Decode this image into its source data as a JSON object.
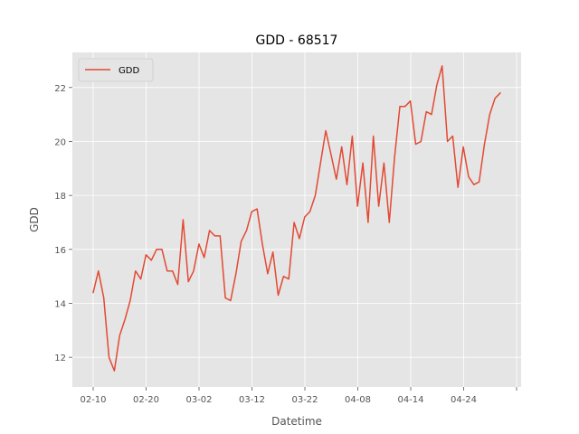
{
  "chart_data": {
    "type": "line",
    "title": "GDD - 68517",
    "xlabel": "Datetime",
    "ylabel": "GDD",
    "x_tick_labels": [
      "02-10",
      "02-20",
      "03-02",
      "03-12",
      "03-22",
      "04-08",
      "04-14",
      "04-24"
    ],
    "y_ticks": [
      12,
      14,
      16,
      18,
      20,
      22
    ],
    "ylim": [
      10.9,
      23.3
    ],
    "grid": true,
    "legend_position": "top-left",
    "colors": {
      "line": "#e24a33",
      "plot_background": "#e5e5e5",
      "grid": "#ffffff"
    },
    "series": [
      {
        "name": "GDD",
        "values": [
          14.4,
          15.2,
          14.2,
          12.0,
          11.5,
          12.8,
          13.4,
          14.1,
          15.2,
          14.9,
          15.8,
          15.6,
          16.0,
          16.0,
          15.2,
          15.2,
          14.7,
          17.1,
          14.8,
          15.2,
          16.2,
          15.7,
          16.7,
          16.5,
          16.5,
          14.2,
          14.1,
          15.1,
          16.3,
          16.7,
          17.4,
          17.5,
          16.2,
          15.1,
          15.9,
          14.3,
          15.0,
          14.9,
          17.0,
          16.4,
          17.2,
          17.4,
          18.0,
          19.2,
          20.4,
          19.5,
          18.6,
          19.8,
          18.4,
          20.2,
          17.6,
          19.2,
          17.0,
          20.2,
          17.6,
          19.2,
          17.0,
          19.4,
          21.3,
          21.3,
          21.5,
          19.9,
          20.0,
          21.1,
          21.0,
          22.1,
          22.8,
          20.0,
          20.2,
          18.3,
          19.8,
          18.7,
          18.4,
          18.5,
          19.9,
          21.0,
          21.6,
          21.8
        ]
      }
    ]
  }
}
